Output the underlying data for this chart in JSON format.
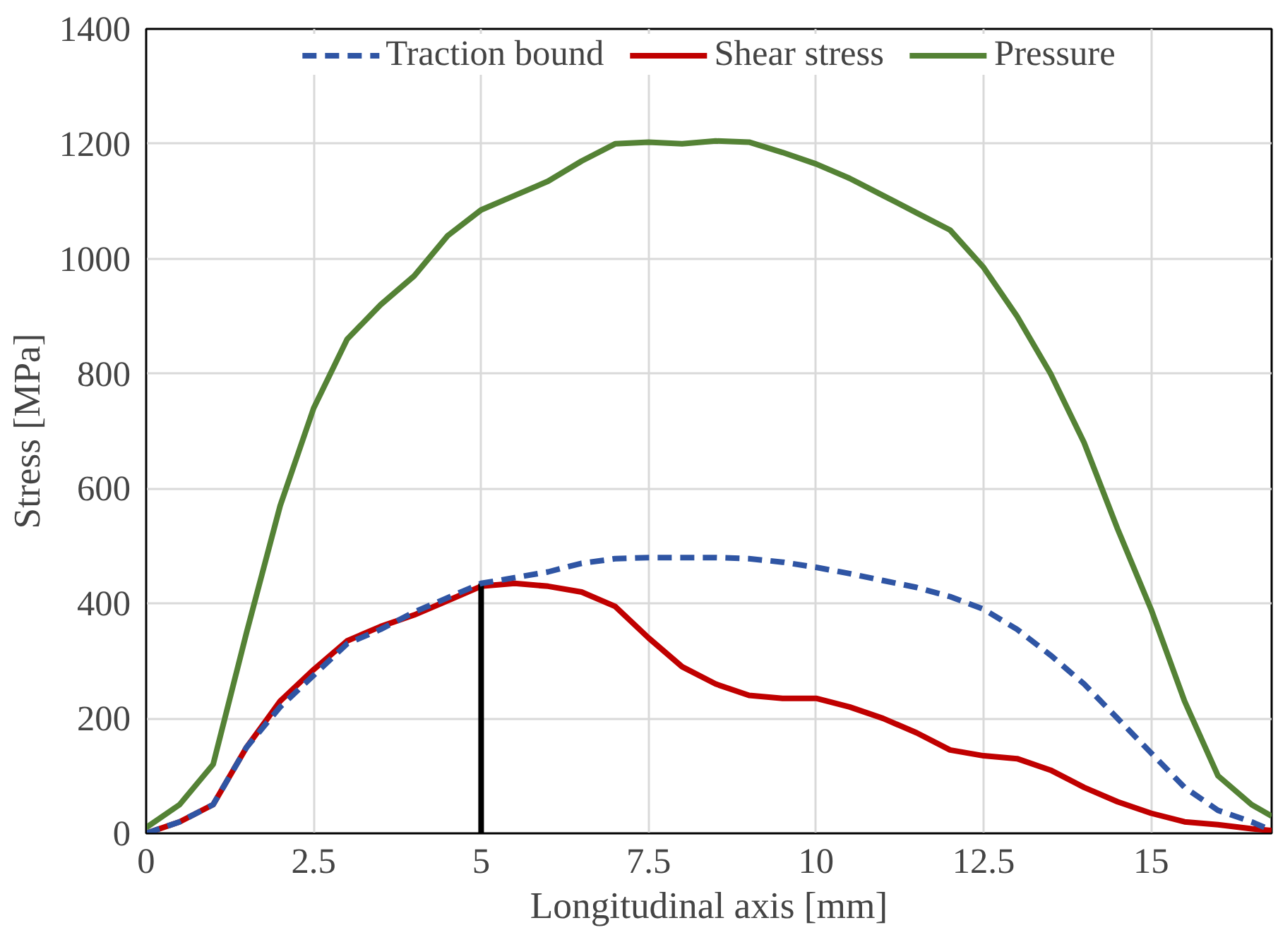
{
  "chart_data": {
    "type": "line",
    "xlabel": "Longitudinal axis [mm]",
    "ylabel": "Stress [MPa]",
    "xlim": [
      0,
      16.8
    ],
    "xticks": [
      0,
      2.5,
      5,
      7.5,
      10,
      12.5,
      15
    ],
    "ylim": [
      0,
      1400
    ],
    "yticks": [
      0,
      200,
      400,
      600,
      800,
      1000,
      1200,
      1400
    ],
    "grid": true,
    "legend": "top",
    "marker": "none",
    "x": [
      0,
      0.5,
      1,
      1.5,
      2,
      2.5,
      3,
      3.5,
      4,
      4.5,
      5,
      5.5,
      6,
      6.5,
      7,
      7.5,
      8,
      8.5,
      9,
      9.5,
      10,
      10.5,
      11,
      11.5,
      12,
      12.5,
      13,
      13.5,
      14,
      14.5,
      15,
      15.5,
      16,
      16.5,
      16.8
    ],
    "series": [
      {
        "name": "Traction bound",
        "color": "#2f55a4",
        "line_style": "dashed",
        "values": [
          0,
          20,
          50,
          150,
          220,
          275,
          330,
          355,
          385,
          410,
          435,
          445,
          455,
          470,
          478,
          480,
          480,
          480,
          478,
          472,
          463,
          452,
          440,
          428,
          412,
          390,
          355,
          310,
          260,
          200,
          140,
          80,
          40,
          20,
          5
        ]
      },
      {
        "name": "Shear stress",
        "color": "#c00000",
        "line_style": "solid",
        "values": [
          0,
          20,
          50,
          150,
          230,
          285,
          335,
          360,
          380,
          405,
          430,
          435,
          430,
          420,
          395,
          340,
          290,
          260,
          240,
          235,
          235,
          220,
          200,
          175,
          145,
          135,
          130,
          110,
          80,
          55,
          35,
          20,
          15,
          8,
          5
        ]
      },
      {
        "name": "Pressure",
        "color": "#548235",
        "line_style": "solid",
        "values": [
          10,
          50,
          120,
          350,
          570,
          740,
          860,
          920,
          970,
          1040,
          1085,
          1110,
          1135,
          1170,
          1200,
          1203,
          1200,
          1205,
          1203,
          1185,
          1165,
          1140,
          1110,
          1080,
          1050,
          985,
          900,
          800,
          680,
          530,
          390,
          230,
          100,
          50,
          30
        ]
      },
      {
        "color": "#000000",
        "line_style": "solid",
        "x": [
          5,
          5
        ],
        "values": [
          0,
          435
        ]
      }
    ]
  }
}
